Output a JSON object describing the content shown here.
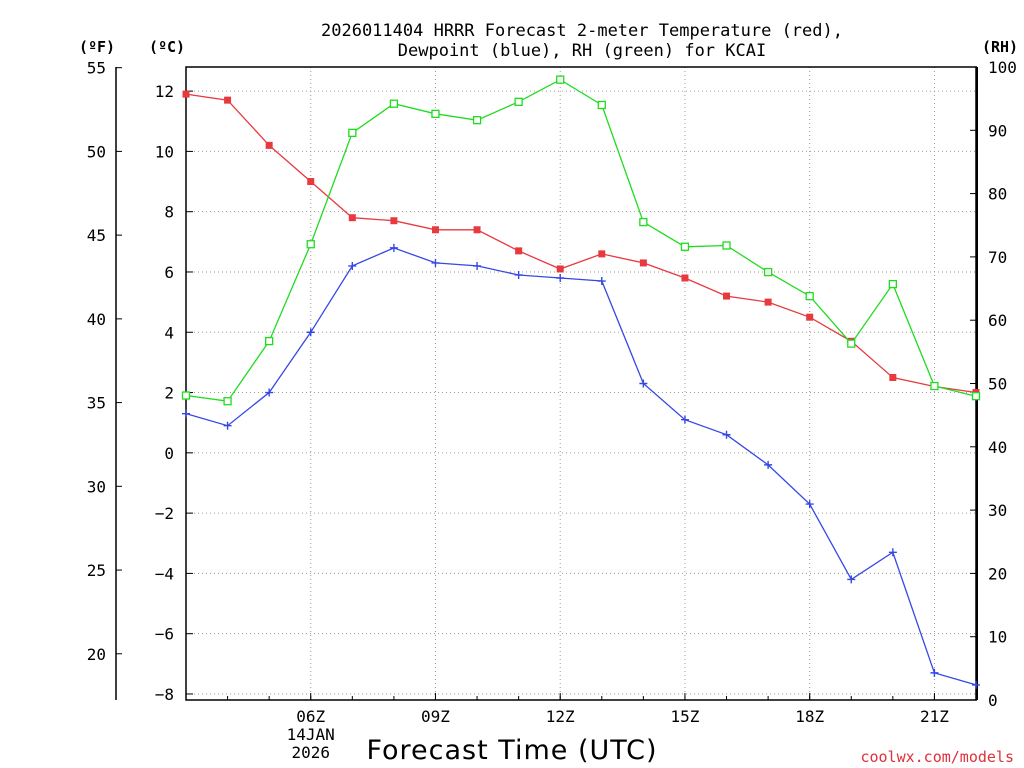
{
  "chart_data": {
    "type": "line",
    "title_line1": "2026011404 HRRR Forecast 2-meter Temperature (red),",
    "title_line2": "Dewpoint (blue), RH (green) for KCAI",
    "xlabel": "Forecast Time (UTC)",
    "credit": "coolwx.com/models",
    "units": {
      "fahrenheit": "(ºF)",
      "celsius": "(ºC)",
      "rh": "(RH)"
    },
    "x_hours": [
      3,
      4,
      5,
      6,
      7,
      8,
      9,
      10,
      11,
      12,
      13,
      14,
      15,
      16,
      17,
      18,
      19,
      20,
      21,
      22
    ],
    "xlim": [
      3,
      22
    ],
    "x_ticks": [
      {
        "hour": 6,
        "label": "06Z",
        "sub1": "14JAN",
        "sub2": "2026"
      },
      {
        "hour": 9,
        "label": "09Z"
      },
      {
        "hour": 12,
        "label": "12Z"
      },
      {
        "hour": 15,
        "label": "15Z"
      },
      {
        "hour": 18,
        "label": "18Z"
      },
      {
        "hour": 21,
        "label": "21Z"
      }
    ],
    "celsius_axis": {
      "range": [
        -8.2,
        12.8
      ],
      "ticks": [
        "12",
        "10",
        "8",
        "6",
        "4",
        "2",
        "0",
        "−2",
        "−4",
        "−6",
        "−8"
      ],
      "tick_values": [
        12,
        10,
        8,
        6,
        4,
        2,
        0,
        -2,
        -4,
        -6,
        -8
      ]
    },
    "fahrenheit_axis": {
      "ticks": [
        "55",
        "50",
        "45",
        "40",
        "35",
        "30",
        "25",
        "20"
      ],
      "tick_values": [
        55,
        50,
        45,
        40,
        35,
        30,
        25,
        20
      ]
    },
    "rh_axis": {
      "range": [
        0,
        100
      ],
      "ticks": [
        "100",
        "90",
        "80",
        "70",
        "60",
        "50",
        "40",
        "30",
        "20",
        "10",
        "0"
      ],
      "tick_values": [
        100,
        90,
        80,
        70,
        60,
        50,
        40,
        30,
        20,
        10,
        0
      ]
    },
    "series": [
      {
        "name": "Temperature",
        "unit": "C",
        "color": "#e8393f",
        "marker": "square-filled",
        "values": [
          11.9,
          11.7,
          10.2,
          9.0,
          7.8,
          7.7,
          7.4,
          7.4,
          6.7,
          6.1,
          6.6,
          6.3,
          5.8,
          5.2,
          5.0,
          4.5,
          3.7,
          2.5,
          2.2,
          2.0
        ]
      },
      {
        "name": "Dewpoint",
        "unit": "C",
        "color": "#3548e6",
        "marker": "plus",
        "values": [
          1.3,
          0.9,
          2.0,
          4.0,
          6.2,
          6.8,
          6.3,
          6.2,
          5.9,
          5.8,
          5.7,
          2.3,
          1.1,
          0.6,
          -0.4,
          -1.7,
          -4.2,
          -3.3,
          -7.3,
          -7.7
        ]
      },
      {
        "name": "RH",
        "unit": "%",
        "color": "#1fdc1f",
        "marker": "square-open",
        "values": [
          48.1,
          47.2,
          56.7,
          72.0,
          89.6,
          94.2,
          92.6,
          91.6,
          94.5,
          98.0,
          94.0,
          75.5,
          71.6,
          71.8,
          67.6,
          63.8,
          56.3,
          65.7,
          49.6,
          48.0
        ]
      }
    ]
  }
}
